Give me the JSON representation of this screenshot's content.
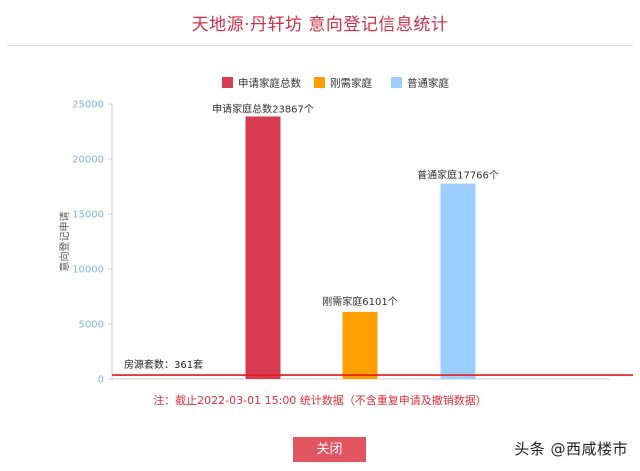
{
  "header": {
    "title": "天地源·丹轩坊 意向登记信息统计"
  },
  "chart_data": {
    "type": "bar",
    "categories": [
      "申请家庭总数",
      "刚需家庭",
      "普通家庭"
    ],
    "series": [
      {
        "name": "申请家庭总数",
        "value": 23867,
        "color": "#d73c52",
        "label": "申请家庭总数23867个"
      },
      {
        "name": "刚需家庭",
        "value": 6101,
        "color": "#ff9f00",
        "label": "刚需家庭6101个"
      },
      {
        "name": "普通家庭",
        "value": 17766,
        "color": "#9ccfff",
        "label": "普通家庭17766个"
      }
    ],
    "ylabel": "意向登记申请",
    "ylim": [
      0,
      25000
    ],
    "yticks": [
      "0",
      "5000",
      "10000",
      "15000",
      "20000",
      "25000"
    ],
    "grid": false,
    "legend_position": "top-center",
    "reference_line": {
      "value": 361,
      "label": "房源套数：361套",
      "color": "#e31a1c"
    }
  },
  "footer": {
    "note": "注：截止2022-03-01 15:00 统计数据（不含重复申请及撤销数据）",
    "close_label": "关闭"
  },
  "watermark": {
    "text": "头条 @西咸楼市"
  }
}
